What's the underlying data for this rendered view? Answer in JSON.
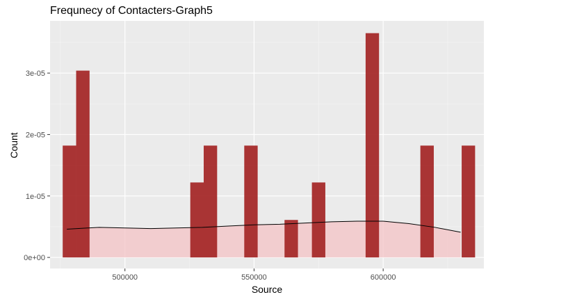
{
  "chart_data": {
    "type": "bar",
    "title": "Frequnecy of Contacters-Graph5",
    "xlabel": "Source",
    "ylabel": "Count",
    "xlim": [
      471000,
      639000
    ],
    "ylim": [
      -1.8e-06,
      3.85e-05
    ],
    "x_ticks": [
      {
        "value": 500000,
        "label": "500000"
      },
      {
        "value": 550000,
        "label": "550000"
      },
      {
        "value": 600000,
        "label": "600000"
      }
    ],
    "y_ticks": [
      {
        "value": 0,
        "label": "0e+00"
      },
      {
        "value": 1e-05,
        "label": "1e-05"
      },
      {
        "value": 2e-05,
        "label": "2e-05"
      },
      {
        "value": 3e-05,
        "label": "3e-05"
      }
    ],
    "bin_width": 5200,
    "bars": [
      {
        "x": 478500,
        "value": 1.82e-05
      },
      {
        "x": 483700,
        "value": 3.04e-05
      },
      {
        "x": 527900,
        "value": 1.22e-05
      },
      {
        "x": 533100,
        "value": 1.82e-05
      },
      {
        "x": 548800,
        "value": 1.82e-05
      },
      {
        "x": 564400,
        "value": 6.1e-06
      },
      {
        "x": 575000,
        "value": 1.22e-05
      },
      {
        "x": 595800,
        "value": 3.65e-05
      },
      {
        "x": 617000,
        "value": 1.82e-05
      },
      {
        "x": 633000,
        "value": 1.82e-05
      }
    ],
    "density": {
      "x": [
        477500,
        490000,
        500000,
        510000,
        520000,
        530000,
        540000,
        550000,
        560000,
        570000,
        580000,
        590000,
        600000,
        610000,
        620000,
        630000
      ],
      "y": [
        4.6e-06,
        4.9e-06,
        4.8e-06,
        4.7e-06,
        4.8e-06,
        4.9e-06,
        5.1e-06,
        5.3e-06,
        5.4e-06,
        5.6e-06,
        5.8e-06,
        5.9e-06,
        5.9e-06,
        5.5e-06,
        4.9e-06,
        4.1e-06
      ]
    },
    "grid": true,
    "colors": {
      "panel": "#ebebeb",
      "grid_major": "#ffffff",
      "bar_fill": "#a52a2a",
      "density_fill": "#f4c3c6",
      "density_line": "#000000"
    }
  }
}
